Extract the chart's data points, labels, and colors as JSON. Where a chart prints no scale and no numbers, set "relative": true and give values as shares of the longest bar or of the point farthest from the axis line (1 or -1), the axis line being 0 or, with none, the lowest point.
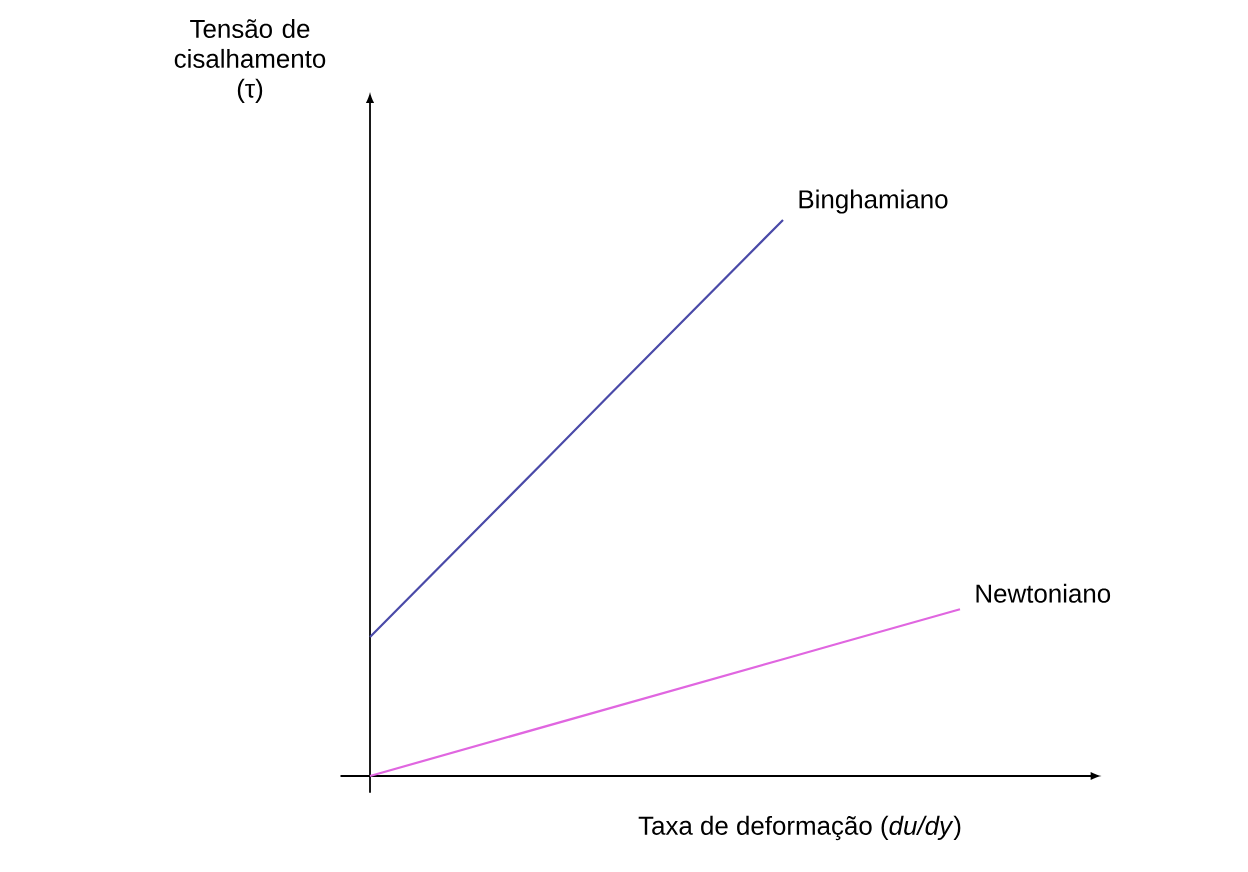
{
  "chart_data": {
    "type": "line",
    "relative": true,
    "xlabel": "Taxa de deformação (*du/dy*)",
    "ylabel": "Tensão de cisalhamento (τ)",
    "categories": [
      null,
      null,
      null,
      null,
      null,
      null,
      null,
      null,
      null,
      null,
      null
    ],
    "series": [
      {
        "name": "Binghamiano",
        "color": "#4a4aa8",
        "values": [
          0.25,
          0.357,
          0.464,
          0.571,
          0.679,
          0.786,
          0.893,
          1,
          null,
          null,
          null
        ]
      },
      {
        "name": "Newtoniano",
        "color": "#e066e0",
        "values": [
          0,
          0.03,
          0.06,
          0.09,
          0.12,
          0.15,
          0.18,
          0.21,
          0.24,
          0.27,
          0.3
        ]
      }
    ]
  }
}
